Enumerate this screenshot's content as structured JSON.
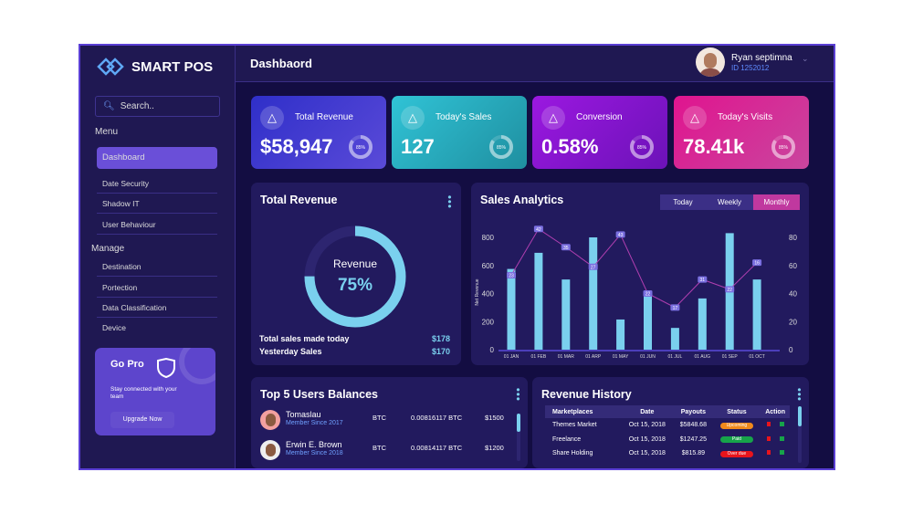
{
  "brand": {
    "name": "SMART POS"
  },
  "search": {
    "placeholder": "Search.."
  },
  "sidebar": {
    "menu_label": "Menu",
    "menu_items": [
      {
        "label": "Dashboard",
        "active": true
      },
      {
        "label": "Date Security"
      },
      {
        "label": "Shadow IT"
      },
      {
        "label": "User Behaviour"
      }
    ],
    "manage_label": "Manage",
    "manage_items": [
      {
        "label": "Destination"
      },
      {
        "label": "Portection"
      },
      {
        "label": "Data Classification"
      },
      {
        "label": "Device"
      }
    ]
  },
  "gopro": {
    "title": "Go Pro",
    "text": "Stay connected with your team",
    "button": "Upgrade Now"
  },
  "header": {
    "title": "Dashbaord",
    "user_name": "Ryan septimna",
    "user_id": "ID 1252012"
  },
  "stats": [
    {
      "label": "Total Revenue",
      "value": "$58,947",
      "ring": "85%",
      "ring_fraction": 0.85,
      "colors": [
        "#2f2fc9",
        "#5a4ad8"
      ]
    },
    {
      "label": "Today's Sales",
      "value": "127",
      "ring": "85%",
      "ring_fraction": 0.85,
      "colors": [
        "#30c3d6",
        "#1f8fa0"
      ]
    },
    {
      "label": "Conversion",
      "value": "0.58%",
      "ring": "85%",
      "ring_fraction": 0.85,
      "colors": [
        "#9b18e0",
        "#6c12b8"
      ]
    },
    {
      "label": "Today's Visits",
      "value": "78.41k",
      "ring": "85%",
      "ring_fraction": 0.85,
      "colors": [
        "#e0148f",
        "#c9469e"
      ]
    }
  ],
  "revenue_panel": {
    "title": "Total Revenue",
    "donut_label": "Revenue",
    "donut_value": "75%",
    "donut_fraction": 0.75,
    "rows": [
      {
        "label": "Total sales made today",
        "value": "$178"
      },
      {
        "label": "Yesterday Sales",
        "value": "$170"
      }
    ]
  },
  "sales_analytics": {
    "title": "Sales Analytics",
    "tabs": [
      "Today",
      "Weekly",
      "Monthly"
    ],
    "active_tab": "Monthly"
  },
  "chart_data": {
    "type": "bar",
    "title": "Sales Analytics",
    "ylabel": "Net Revenue",
    "categories": [
      "01 JAN",
      "01 FEB",
      "01 MAR",
      "01 ARP",
      "01 MAY",
      "01 JUN",
      "01 JUL",
      "01 AUG",
      "01 SEP",
      "01 OCT"
    ],
    "ylim": [
      0,
      800
    ],
    "yticks": [
      0,
      200,
      400,
      600,
      800
    ],
    "y2lim": [
      0,
      80
    ],
    "y2ticks": [
      0,
      20,
      40,
      60,
      80
    ],
    "series": [
      {
        "type": "bar",
        "axis": "left",
        "values": [
          575,
          690,
          500,
          800,
          215,
          415,
          155,
          365,
          830,
          500
        ],
        "color": "#7ad0ee"
      },
      {
        "type": "line",
        "axis": "right",
        "values": [
          53,
          86,
          73,
          59,
          82,
          40,
          30,
          50,
          43,
          62
        ],
        "labels": [
          "23",
          "42",
          "35",
          "27",
          "43",
          "22",
          "17",
          "31",
          "22",
          "16"
        ],
        "color": "#b03fb0"
      }
    ]
  },
  "users_panel": {
    "title": "Top 5 Users Balances",
    "users": [
      {
        "name": "Tomaslau",
        "since": "Member Since 2017",
        "currency": "BTC",
        "amount": "0.00816117 BTC",
        "usd": "$1500"
      },
      {
        "name": "Erwin E. Brown",
        "since": "Member Since 2018",
        "currency": "BTC",
        "amount": "0.00814117 BTC",
        "usd": "$1200"
      }
    ]
  },
  "history_panel": {
    "title": "Revenue History",
    "columns": [
      "Marketplaces",
      "Date",
      "Payouts",
      "Status",
      "Action"
    ],
    "rows": [
      {
        "market": "Themes Market",
        "date": "Oct 15, 2018",
        "payout": "$5848.68",
        "status": "Upcoming",
        "status_color": "#f08a1c"
      },
      {
        "market": "Freelance",
        "date": "Oct 15, 2018",
        "payout": "$1247.25",
        "status": "Paid",
        "status_color": "#17a34a"
      },
      {
        "market": "Share Holding",
        "date": "Oct 15, 2018",
        "payout": "$815.89",
        "status": "Over due",
        "status_color": "#e8141c"
      }
    ]
  }
}
